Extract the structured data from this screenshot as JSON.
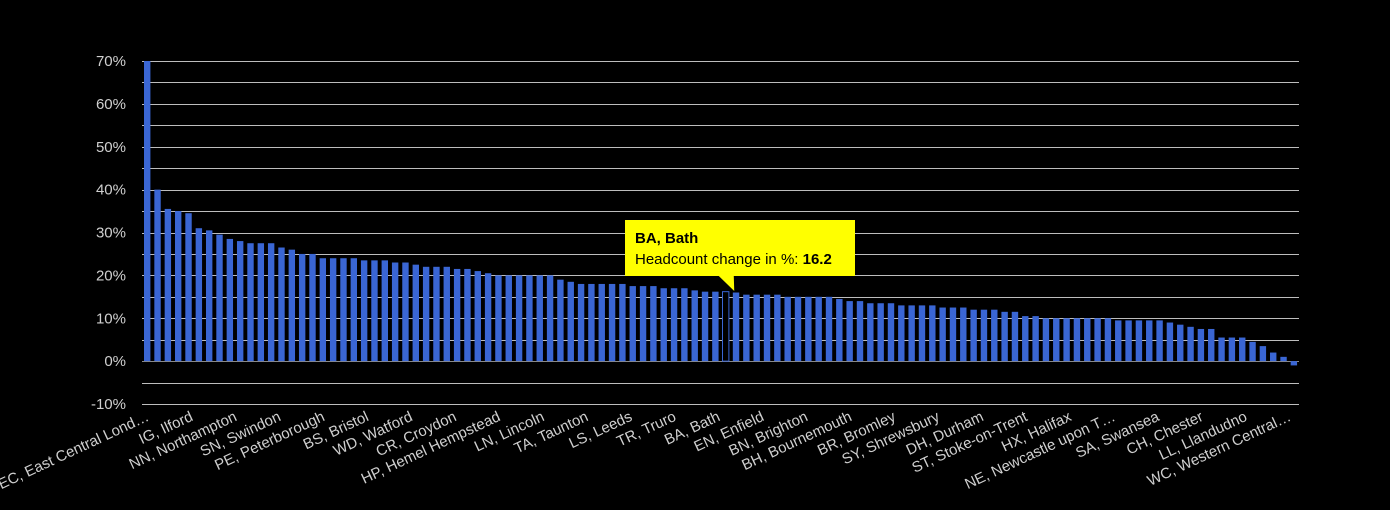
{
  "chart_data": {
    "type": "bar",
    "colors": {
      "bar": "#3a66d4",
      "grid": "#bdbdbd",
      "background": "#000000",
      "tooltip": "#ffff00"
    },
    "ylim": [
      -10,
      70
    ],
    "y_ticks": [
      "-10%",
      "0%",
      "10%",
      "20%",
      "30%",
      "40%",
      "50%",
      "60%",
      "70%"
    ],
    "grid": true,
    "categories_shown": [
      "EC, East Central Lond…",
      "IG, Ilford",
      "NN, Northampton",
      "SN, Swindon",
      "PE, Peterborough",
      "BS, Bristol",
      "WD, Watford",
      "CR, Croydon",
      "HP, Hemel Hempstead",
      "LN, Lincoln",
      "TA, Taunton",
      "LS, Leeds",
      "TR, Truro",
      "BA, Bath",
      "EN, Enfield",
      "BN, Brighton",
      "BH, Bournemouth",
      "BR, Bromley",
      "SY, Shrewsbury",
      "DH, Durham",
      "ST, Stoke-on-Trent",
      "HX, Halifax",
      "NE, Newcastle upon T…",
      "SA, Swansea",
      "CH, Chester",
      "LL, Llandudno",
      "WC, Western Central…"
    ],
    "values": [
      70,
      40,
      35.5,
      35,
      34.5,
      31,
      30.5,
      29.5,
      28.5,
      28,
      27.5,
      27.5,
      27.5,
      26.5,
      26,
      25,
      25,
      24,
      24,
      24,
      24,
      23.5,
      23.5,
      23.5,
      23,
      23,
      22.5,
      22,
      22,
      22,
      21.5,
      21.5,
      21,
      20.5,
      20,
      20,
      20,
      20,
      20,
      20,
      19,
      18.5,
      18,
      18,
      18,
      18,
      18,
      17.5,
      17.5,
      17.5,
      17,
      17,
      17,
      16.5,
      16.2,
      16.2,
      16.2,
      16,
      15.5,
      15.5,
      15.5,
      15.5,
      15,
      15,
      15,
      15,
      15,
      14.5,
      14,
      14,
      13.5,
      13.5,
      13.5,
      13,
      13,
      13,
      13,
      12.5,
      12.5,
      12.5,
      12,
      12,
      12,
      11.5,
      11.5,
      10.5,
      10.5,
      10,
      10,
      10,
      10,
      10,
      10,
      10,
      9.5,
      9.5,
      9.5,
      9.5,
      9.5,
      9,
      8.5,
      8,
      7.5,
      7.5,
      5.5,
      5.5,
      5.5,
      4.5,
      3.5,
      2,
      1,
      -1
    ],
    "highlight_index": 56,
    "tooltip": {
      "title": "BA, Bath",
      "label": "Headcount change in %: ",
      "value": "16.2"
    }
  }
}
